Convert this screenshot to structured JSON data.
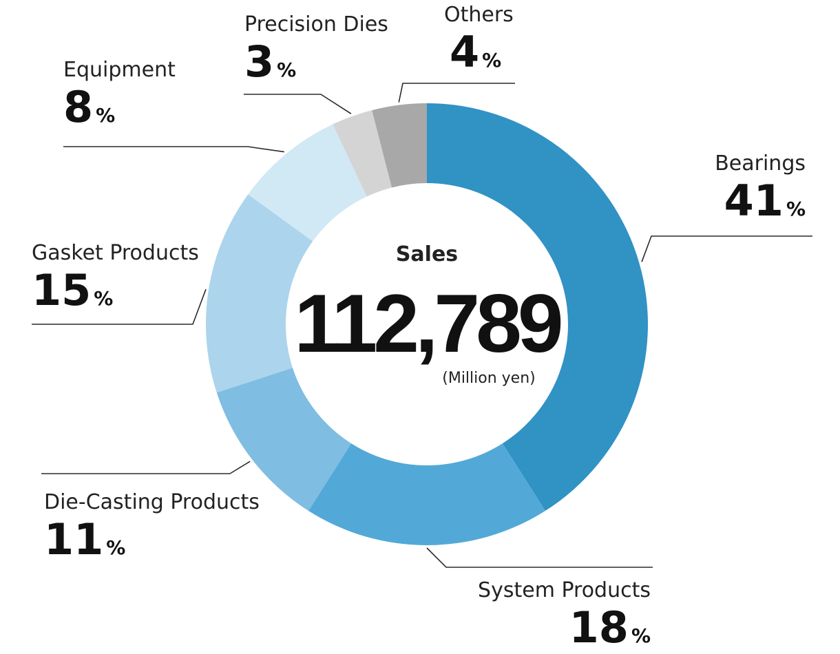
{
  "chart_data": {
    "type": "pie",
    "variant": "donut",
    "center": {
      "title": "Sales",
      "value": "112,789",
      "unit": "(Million yen)"
    },
    "slices": [
      {
        "label": "Bearings",
        "value": 41,
        "color": "#3192c4"
      },
      {
        "label": "System Products",
        "value": 18,
        "color": "#52a9d7"
      },
      {
        "label": "Die-Casting Products",
        "value": 11,
        "color": "#7fbde2"
      },
      {
        "label": "Gasket Products",
        "value": 15,
        "color": "#acd4ec"
      },
      {
        "label": "Equipment",
        "value": 8,
        "color": "#d1e8f5"
      },
      {
        "label": "Precision Dies",
        "value": 3,
        "color": "#d4d4d4"
      },
      {
        "label": "Others",
        "value": 4,
        "color": "#a8a8a8"
      }
    ],
    "percent_sign": "%",
    "legend": "none"
  }
}
